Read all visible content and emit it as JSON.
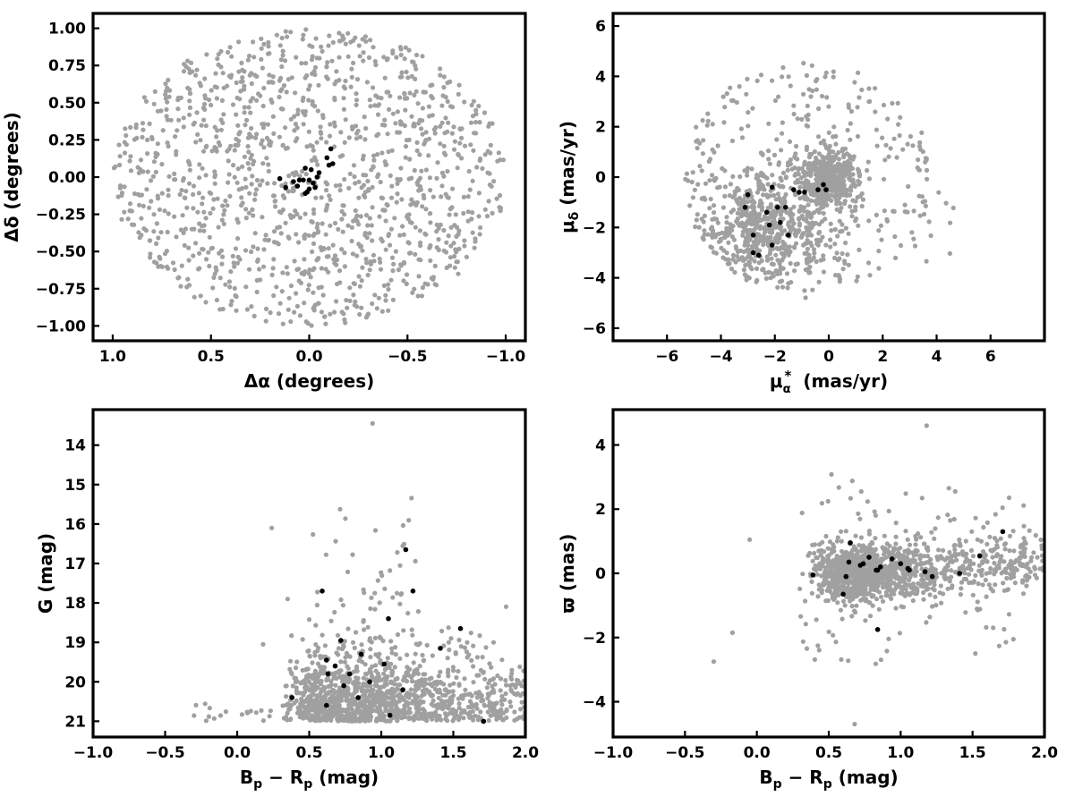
{
  "colors": {
    "field_points": "#a0a0a0",
    "member_points": "#000000",
    "frame": "#000000"
  },
  "chart_data": [
    {
      "id": "sky",
      "type": "scatter",
      "xlabel": "Δα (degrees)",
      "ylabel": "Δδ (degrees)",
      "xlim": [
        1.1,
        -1.1
      ],
      "ylim": [
        -1.1,
        1.1
      ],
      "xticks": [
        1.0,
        0.5,
        0.0,
        -0.5,
        -1.0
      ],
      "xtick_labels": [
        "1.0",
        "0.5",
        "0.0",
        "−0.5",
        "−1.0"
      ],
      "yticks": [
        -1.0,
        -0.75,
        -0.5,
        -0.25,
        0.0,
        0.25,
        0.5,
        0.75,
        1.0
      ],
      "ytick_labels": [
        "−1.00",
        "−0.75",
        "−0.50",
        "−0.25",
        "0.00",
        "0.25",
        "0.50",
        "0.75",
        "1.00"
      ],
      "grid": false,
      "field": {
        "n": 1300,
        "distribution": "uniform within radius 1.0 degree of center"
      },
      "members": {
        "x": [
          0.02,
          -0.01,
          0.03,
          0.0,
          -0.02,
          0.05,
          -0.04,
          0.01,
          0.12,
          0.08,
          -0.09,
          -0.11,
          -0.12,
          -0.1,
          0.06,
          -0.05,
          0.15,
          0.02,
          -0.03,
          0.0
        ],
        "y": [
          0.06,
          0.05,
          -0.02,
          -0.08,
          -0.04,
          -0.02,
          0.0,
          -0.1,
          -0.07,
          -0.03,
          0.13,
          0.19,
          0.09,
          0.08,
          -0.06,
          0.03,
          -0.01,
          -0.11,
          -0.07,
          -0.02
        ]
      }
    },
    {
      "id": "proper-motion",
      "type": "scatter",
      "xlabel": "μ*α (mas/yr)",
      "ylabel": "μδ (mas/yr)",
      "xlim": [
        -8,
        8
      ],
      "ylim": [
        -6.5,
        6.5
      ],
      "xticks": [
        -6,
        -4,
        -2,
        0,
        2,
        4,
        6
      ],
      "xtick_labels": [
        "−6",
        "−4",
        "−2",
        "0",
        "2",
        "4",
        "6"
      ],
      "yticks": [
        -6,
        -4,
        -2,
        0,
        2,
        4,
        6
      ],
      "ytick_labels": [
        "−6",
        "−4",
        "−2",
        "0",
        "2",
        "4",
        "6"
      ],
      "grid": false,
      "field": {
        "n": 1300,
        "distribution": "concentration near (0,0) and (-2,-2), bounded circle radius ~4.8"
      },
      "members": {
        "x": [
          -3.0,
          -3.1,
          -2.8,
          -2.6,
          -2.3,
          -2.1,
          -1.9,
          -1.6,
          -1.3,
          -1.1,
          -0.9,
          -0.4,
          -0.1,
          -0.2,
          -2.8,
          -2.1,
          -1.5,
          -1.8,
          -2.2
        ],
        "y": [
          -0.7,
          -1.2,
          -2.3,
          -3.1,
          -1.4,
          -2.7,
          -1.2,
          -1.2,
          -0.5,
          -0.6,
          -0.6,
          -0.5,
          -0.5,
          -0.3,
          -3.0,
          -0.4,
          -2.3,
          -1.8,
          -1.9
        ]
      }
    },
    {
      "id": "cmd",
      "type": "scatter",
      "xlabel": "Bp − Rp (mag)",
      "ylabel": "G (mag)",
      "xlim": [
        -1.0,
        2.0
      ],
      "ylim": [
        21.4,
        13.1
      ],
      "xticks": [
        -1.0,
        -0.5,
        0.0,
        0.5,
        1.0,
        1.5,
        2.0
      ],
      "xtick_labels": [
        "−1.0",
        "−0.5",
        "0.0",
        "0.5",
        "1.0",
        "1.5",
        "2.0"
      ],
      "yticks": [
        14,
        15,
        16,
        17,
        18,
        19,
        20,
        21
      ],
      "ytick_labels": [
        "14",
        "15",
        "16",
        "17",
        "18",
        "19",
        "20",
        "21"
      ],
      "grid": false,
      "field": {
        "n": 1300,
        "distribution": "dense band G 19-21 for color 0.3-2.0, sparse tail to G ~15.4"
      },
      "members": {
        "x": [
          0.38,
          0.59,
          0.62,
          0.63,
          0.68,
          0.72,
          0.74,
          0.78,
          0.84,
          0.86,
          0.92,
          1.02,
          1.05,
          1.06,
          1.15,
          1.17,
          1.22,
          1.41,
          1.55,
          1.71,
          0.62
        ],
        "y": [
          20.4,
          17.7,
          20.6,
          19.8,
          19.6,
          18.95,
          20.1,
          19.8,
          20.4,
          19.3,
          20.0,
          19.55,
          18.4,
          20.85,
          20.2,
          16.65,
          17.7,
          19.15,
          18.65,
          21.0,
          19.45
        ]
      }
    },
    {
      "id": "parallax",
      "type": "scatter",
      "xlabel": "Bp − Rp (mag)",
      "ylabel": "ϖ (mas)",
      "xlim": [
        -1.0,
        2.0
      ],
      "ylim": [
        -5.1,
        5.1
      ],
      "xticks": [
        -1.0,
        -0.5,
        0.0,
        0.5,
        1.0,
        1.5,
        2.0
      ],
      "xtick_labels": [
        "−1.0",
        "−0.5",
        "0.0",
        "0.5",
        "1.0",
        "1.5",
        "2.0"
      ],
      "yticks": [
        -4,
        -2,
        0,
        2,
        4
      ],
      "ytick_labels": [
        "−4",
        "−2",
        "0",
        "2",
        "4"
      ],
      "grid": false,
      "field": {
        "n": 1300,
        "distribution": "dense clump near color 0.7 at parallax 0, rising trend to ~0.5 at color 2.0"
      },
      "members": {
        "x": [
          0.39,
          0.6,
          0.62,
          0.64,
          0.65,
          0.72,
          0.74,
          0.78,
          0.83,
          0.84,
          0.86,
          0.94,
          1.0,
          1.05,
          1.06,
          1.17,
          1.22,
          1.41,
          1.55,
          1.71,
          0.84
        ],
        "y": [
          -0.05,
          -0.65,
          -0.1,
          0.35,
          0.95,
          0.25,
          0.3,
          0.5,
          0.1,
          0.1,
          0.2,
          0.45,
          0.3,
          0.15,
          0.1,
          0.05,
          -0.1,
          0.0,
          0.55,
          1.3,
          -1.75
        ]
      }
    }
  ]
}
